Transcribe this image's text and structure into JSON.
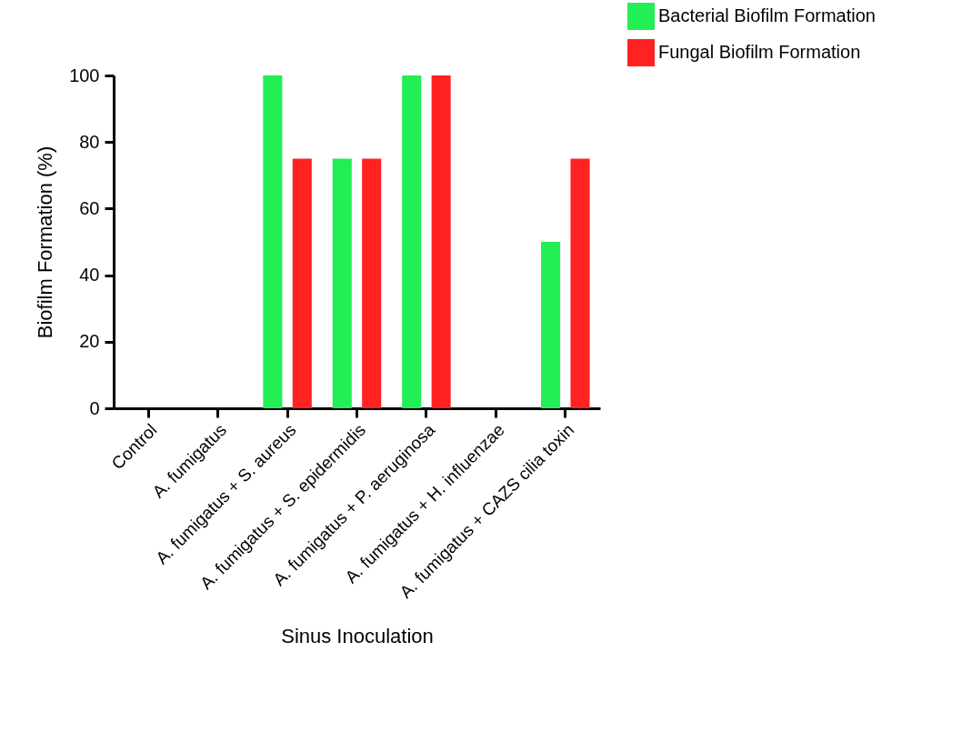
{
  "chart_data": {
    "type": "bar",
    "xlabel": "Sinus Inoculation",
    "ylabel": "Biofilm Formation (%)",
    "categories": [
      "Control",
      "A. fumigatus",
      "A. fumigatus + S. aureus",
      "A. fumigatus + S. epidermidis",
      "A. fumigatus + P. aeruginosa",
      "A. fumigatus + H. influenzae",
      "A. fumigatus + CAZS cilia toxin"
    ],
    "series": [
      {
        "name": "Bacterial Biofilm Formation",
        "color": "#22ee55",
        "values": [
          0,
          0,
          100,
          75,
          100,
          0,
          50
        ]
      },
      {
        "name": "Fungal Biofilm Formation",
        "color": "#ff2222",
        "values": [
          0,
          0,
          75,
          75,
          100,
          0,
          75
        ]
      }
    ],
    "ylim": [
      0,
      100
    ],
    "yticks": [
      0,
      20,
      40,
      60,
      80,
      100
    ],
    "legend": "top right"
  }
}
